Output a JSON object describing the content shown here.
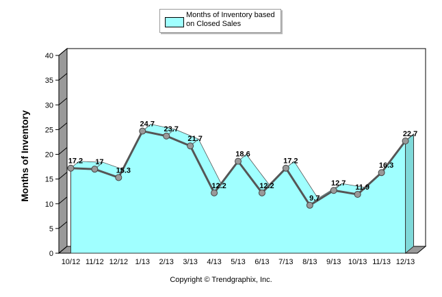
{
  "legend": {
    "label": "Months of Inventory based on Closed Sales"
  },
  "credit": "Copyright © Trendgraphix, Inc.",
  "colors": {
    "fill": "#a0ffff",
    "fill_side": "#7fd9d9",
    "line": "#555555",
    "marker": "#999999",
    "wall": "#ffffff",
    "floor": "#999999"
  },
  "chart_data": {
    "type": "area",
    "ylabel": "Months of Inventory",
    "xlabel": "",
    "ylim": [
      0,
      40
    ],
    "yticks": [
      0,
      5,
      10,
      15,
      20,
      25,
      30,
      35,
      40
    ],
    "grid": false,
    "legend_position": "top-center",
    "categories": [
      "10/12",
      "11/12",
      "12/12",
      "1/13",
      "2/13",
      "3/13",
      "4/13",
      "5/13",
      "6/13",
      "7/13",
      "8/13",
      "9/13",
      "10/13",
      "11/13",
      "12/13"
    ],
    "series": [
      {
        "name": "Months of Inventory based on Closed Sales",
        "values": [
          17.2,
          17,
          15.3,
          24.7,
          23.7,
          21.7,
          12.2,
          18.6,
          12.2,
          17.2,
          9.7,
          12.7,
          11.9,
          16.3,
          22.7
        ],
        "labels": [
          "17.2",
          "17",
          "15.3",
          "24.7",
          "23.7",
          "21.7",
          "12.2",
          "18.6",
          "12.2",
          "17.2",
          "9.7",
          "12.7",
          "11.9",
          "16.3",
          "22.7"
        ]
      }
    ]
  }
}
